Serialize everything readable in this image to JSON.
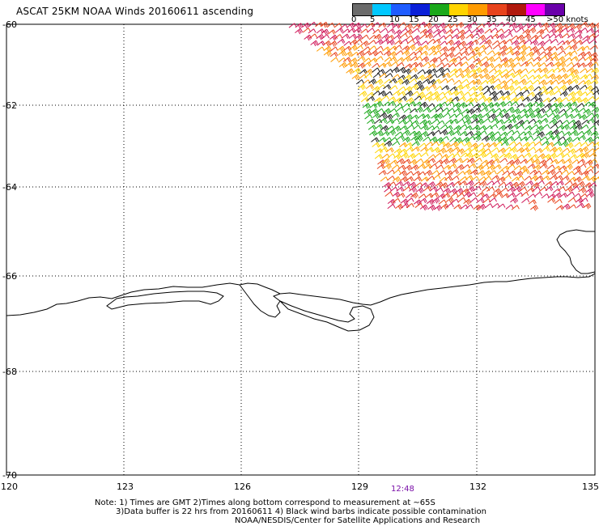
{
  "title": "ASCAT 25KM NOAA Winds 20160611 ascending",
  "lat_labels": [
    "-60",
    "-62",
    "-64",
    "-66",
    "-68",
    "-70"
  ],
  "lon_labels": [
    "120",
    "123",
    "126",
    "129",
    "132",
    "135"
  ],
  "time_label": "12:48",
  "legend": {
    "labels": [
      "0",
      "5",
      "10",
      "15",
      "20",
      "25",
      "30",
      "35",
      "40",
      "45",
      ">50 knots"
    ],
    "colors": [
      "#6b6b6b",
      "#00c8ff",
      "#1f5cff",
      "#0a1fd8",
      "#1aa81a",
      "#ffd400",
      "#ff9b00",
      "#e8431c",
      "#b0180c",
      "#ff00ff",
      "#6a00aa"
    ]
  },
  "notes": [
    "Note: 1) Times are GMT 2)Times along bottom correspond to measurement at ~65S",
    "3)Data buffer is 22 hrs from 20160611 4) Black wind barbs indicate possible contamination",
    "NOAA/NESDIS/Center for Satellite Applications and Research"
  ],
  "colors": {
    "coastline": "#000000",
    "grid": "#000000",
    "barb_calm": "#1e1e1e",
    "barb_20": "#1aa81a",
    "barb_25": "#ffd400",
    "barb_30": "#ff9b00",
    "barb_35": "#e8431c",
    "barb_40": "#d01a5a"
  }
}
